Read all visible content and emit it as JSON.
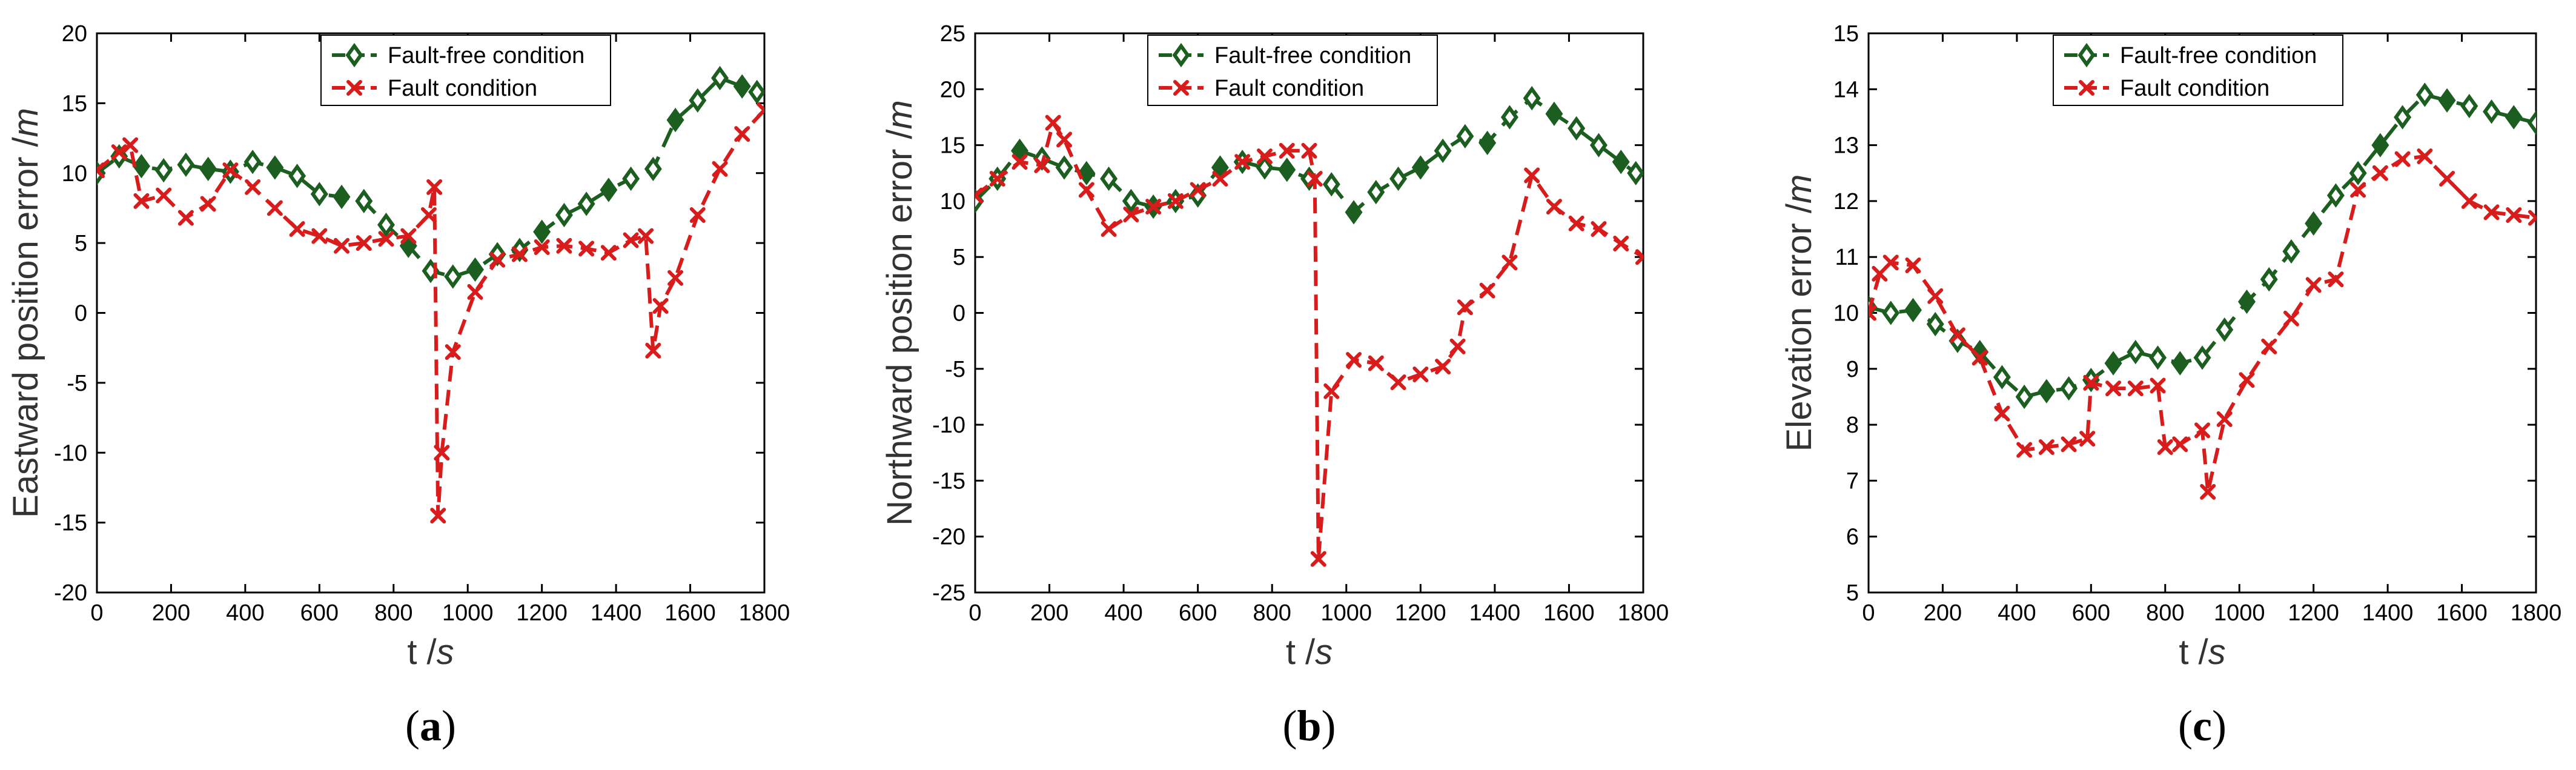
{
  "colors": {
    "fault_free": "#1b5e20",
    "fault": "#d81b1b",
    "axis": "#000000",
    "label": "#333333"
  },
  "chart_data": [
    {
      "type": "line",
      "caption": "a",
      "xlabel": "t /s",
      "ylabel": "Eastward position error /m",
      "xlim": [
        0,
        1800
      ],
      "ylim": [
        -20,
        20
      ],
      "xticks": [
        0,
        200,
        400,
        600,
        800,
        1000,
        1200,
        1400,
        1600,
        1800
      ],
      "yticks": [
        -20,
        -15,
        -10,
        -5,
        0,
        5,
        10,
        15,
        20
      ],
      "legend": "top-right",
      "series": [
        {
          "name": "Fault-free condition",
          "marker": "diamond",
          "x": [
            0,
            60,
            120,
            180,
            240,
            300,
            360,
            420,
            480,
            540,
            600,
            660,
            720,
            780,
            840,
            900,
            960,
            1020,
            1080,
            1140,
            1200,
            1260,
            1320,
            1380,
            1440,
            1500,
            1560,
            1620,
            1680,
            1740,
            1780
          ],
          "y": [
            10,
            11.2,
            10.5,
            10.2,
            10.6,
            10.3,
            10.1,
            10.8,
            10.4,
            9.8,
            8.5,
            8.3,
            8.0,
            6.3,
            4.8,
            3.0,
            2.6,
            3.1,
            4.2,
            4.5,
            5.8,
            7.0,
            7.8,
            8.8,
            9.6,
            10.3,
            13.8,
            15.2,
            16.8,
            16.2,
            15.8
          ]
        },
        {
          "name": "Fault condition",
          "marker": "x",
          "x": [
            0,
            60,
            90,
            120,
            180,
            240,
            300,
            360,
            420,
            480,
            540,
            600,
            660,
            720,
            780,
            840,
            895,
            910,
            920,
            930,
            960,
            1020,
            1080,
            1140,
            1200,
            1260,
            1320,
            1380,
            1440,
            1480,
            1500,
            1520,
            1560,
            1620,
            1680,
            1740,
            1800
          ],
          "y": [
            10.2,
            11.5,
            12.0,
            8.0,
            8.4,
            6.8,
            7.8,
            10.2,
            9.0,
            7.5,
            6.0,
            5.5,
            4.8,
            5.0,
            5.3,
            5.5,
            7.0,
            9.0,
            -14.5,
            -10.0,
            -2.8,
            1.5,
            3.8,
            4.2,
            4.7,
            4.8,
            4.6,
            4.3,
            5.2,
            5.5,
            -2.7,
            0.5,
            2.5,
            7.0,
            10.3,
            12.8,
            14.5
          ]
        }
      ]
    },
    {
      "type": "line",
      "caption": "b",
      "xlabel": "t /s",
      "ylabel": "Northward position error /m",
      "xlim": [
        0,
        1800
      ],
      "ylim": [
        -25,
        25
      ],
      "xticks": [
        0,
        200,
        400,
        600,
        800,
        1000,
        1200,
        1400,
        1600,
        1800
      ],
      "yticks": [
        -25,
        -20,
        -15,
        -10,
        -5,
        0,
        5,
        10,
        15,
        20,
        25
      ],
      "legend": "top-right",
      "series": [
        {
          "name": "Fault-free condition",
          "marker": "diamond",
          "x": [
            0,
            60,
            120,
            180,
            240,
            300,
            360,
            420,
            480,
            540,
            600,
            660,
            720,
            780,
            840,
            900,
            960,
            1020,
            1080,
            1140,
            1200,
            1260,
            1320,
            1380,
            1440,
            1500,
            1560,
            1620,
            1680,
            1740,
            1780
          ],
          "y": [
            10,
            12,
            14.5,
            13.8,
            13,
            12.5,
            12,
            10,
            9.5,
            10,
            10.5,
            13,
            13.5,
            13,
            12.8,
            12,
            11.5,
            9,
            10.8,
            12,
            13,
            14.5,
            15.8,
            15.2,
            17.5,
            19.2,
            17.8,
            16.5,
            15,
            13.5,
            12.5
          ]
        },
        {
          "name": "Fault condition",
          "marker": "x",
          "x": [
            0,
            60,
            120,
            180,
            210,
            240,
            300,
            360,
            420,
            480,
            540,
            600,
            660,
            720,
            780,
            840,
            900,
            915,
            925,
            960,
            1020,
            1080,
            1140,
            1200,
            1260,
            1300,
            1320,
            1380,
            1440,
            1500,
            1560,
            1620,
            1680,
            1740,
            1800
          ],
          "y": [
            10.5,
            12,
            13.5,
            13.2,
            17.0,
            15.5,
            11,
            7.5,
            8.8,
            9.5,
            10,
            11,
            12,
            13.5,
            14,
            14.5,
            14.5,
            12,
            -22,
            -7,
            -4.2,
            -4.5,
            -6.2,
            -5.5,
            -4.8,
            -3,
            0.5,
            2,
            4.5,
            12.3,
            9.5,
            8,
            7.5,
            6.2,
            5
          ]
        }
      ]
    },
    {
      "type": "line",
      "caption": "c",
      "xlabel": "t /s",
      "ylabel": "Elevation error /m",
      "xlim": [
        0,
        1800
      ],
      "ylim": [
        5,
        15
      ],
      "xticks": [
        0,
        200,
        400,
        600,
        800,
        1000,
        1200,
        1400,
        1600,
        1800
      ],
      "yticks": [
        5,
        6,
        7,
        8,
        9,
        10,
        11,
        12,
        13,
        14,
        15
      ],
      "legend": "top-right",
      "series": [
        {
          "name": "Fault-free condition",
          "marker": "diamond",
          "x": [
            0,
            60,
            120,
            180,
            240,
            300,
            360,
            420,
            480,
            540,
            600,
            660,
            720,
            780,
            840,
            900,
            960,
            1020,
            1080,
            1140,
            1200,
            1260,
            1320,
            1380,
            1440,
            1500,
            1560,
            1620,
            1680,
            1740,
            1800
          ],
          "y": [
            10.1,
            10,
            10.05,
            9.8,
            9.5,
            9.3,
            8.85,
            8.5,
            8.6,
            8.65,
            8.8,
            9.1,
            9.3,
            9.2,
            9.1,
            9.2,
            9.7,
            10.2,
            10.6,
            11.1,
            11.6,
            12.1,
            12.5,
            13.0,
            13.5,
            13.9,
            13.8,
            13.7,
            13.6,
            13.5,
            13.4
          ]
        },
        {
          "name": "Fault condition",
          "marker": "x",
          "x": [
            0,
            30,
            60,
            120,
            180,
            240,
            300,
            360,
            420,
            480,
            540,
            590,
            600,
            660,
            720,
            780,
            800,
            840,
            900,
            915,
            960,
            1020,
            1080,
            1140,
            1200,
            1260,
            1320,
            1380,
            1440,
            1500,
            1560,
            1620,
            1680,
            1740,
            1800
          ],
          "y": [
            10,
            10.7,
            10.9,
            10.85,
            10.3,
            9.6,
            9.2,
            8.2,
            7.55,
            7.6,
            7.65,
            7.75,
            8.75,
            8.65,
            8.65,
            8.7,
            7.6,
            7.65,
            7.9,
            6.8,
            8.1,
            8.8,
            9.4,
            9.9,
            10.5,
            10.6,
            12.2,
            12.5,
            12.75,
            12.8,
            12.4,
            12.0,
            11.8,
            11.75,
            11.7
          ]
        }
      ]
    }
  ]
}
